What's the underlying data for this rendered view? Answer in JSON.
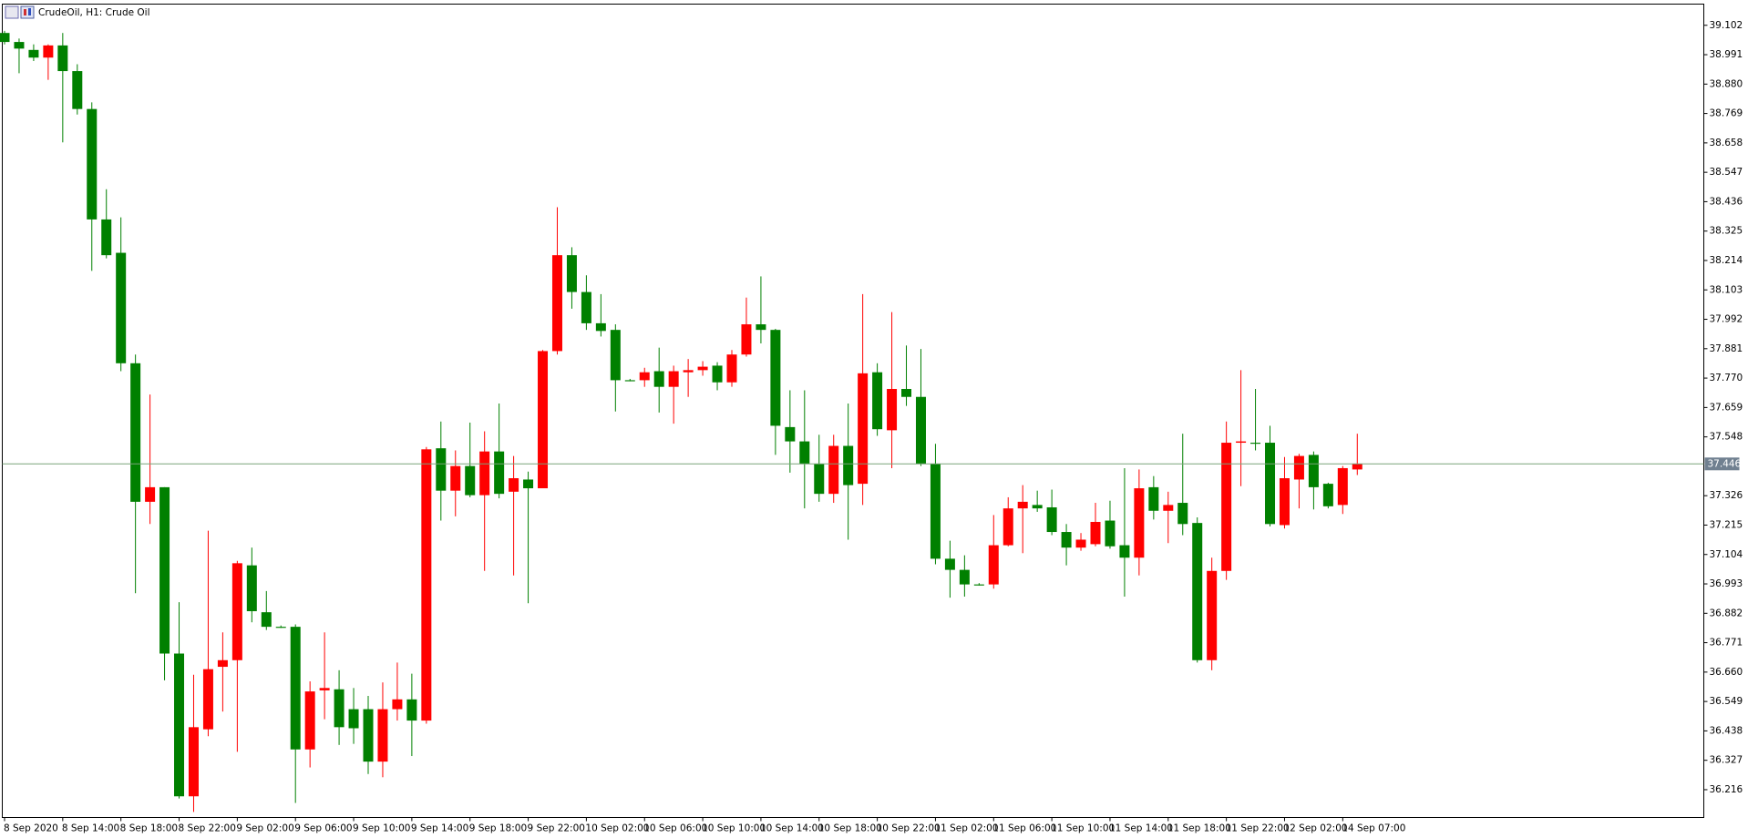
{
  "chart_data": {
    "type": "candlestick",
    "title": "CrudeOil, H1:  Crude Oil",
    "up_color": "#ff0000",
    "down_color": "#008000",
    "current_price": 37.446,
    "current_price_color": "#7aa37a",
    "categories": [
      "8 Sep 2020",
      null,
      null,
      null,
      "8 Sep 14:00",
      null,
      null,
      null,
      "8 Sep 18:00",
      null,
      null,
      null,
      "8 Sep 22:00",
      null,
      null,
      null,
      "9 Sep 02:00",
      null,
      null,
      null,
      "9 Sep 06:00",
      null,
      null,
      null,
      "9 Sep 10:00",
      null,
      null,
      null,
      "9 Sep 14:00",
      null,
      null,
      null,
      "9 Sep 18:00",
      null,
      null,
      null,
      "9 Sep 22:00",
      null,
      null,
      null,
      "10 Sep 02:00",
      null,
      null,
      null,
      "10 Sep 06:00",
      null,
      null,
      null,
      "10 Sep 10:00",
      null,
      null,
      null,
      "10 Sep 14:00",
      null,
      null,
      null,
      "10 Sep 18:00",
      null,
      null,
      null,
      "10 Sep 22:00",
      null,
      null,
      null,
      "11 Sep 02:00",
      null,
      null,
      null,
      "11 Sep 06:00",
      null,
      null,
      null,
      "11 Sep 10:00",
      null,
      null,
      null,
      "11 Sep 14:00",
      null,
      null,
      null,
      "11 Sep 18:00",
      null,
      null,
      null,
      "11 Sep 22:00",
      null,
      null,
      null,
      "12 Sep 02:00",
      null,
      null,
      null,
      "14 Sep 07:00",
      null
    ],
    "open": [
      39.073,
      39.039,
      39.009,
      38.98,
      39.026,
      38.929,
      38.786,
      38.369,
      38.243,
      37.826,
      37.303,
      37.358,
      36.73,
      36.191,
      36.444,
      36.68,
      36.705,
      37.063,
      36.886,
      36.831,
      36.831,
      36.368,
      36.591,
      36.595,
      36.52,
      36.52,
      36.322,
      36.52,
      36.557,
      36.477,
      37.505,
      37.345,
      37.438,
      37.328,
      37.493,
      37.341,
      37.387,
      37.354,
      37.872,
      38.234,
      38.095,
      37.977,
      37.952,
      37.762,
      37.762,
      37.796,
      37.737,
      37.792,
      37.8,
      37.817,
      37.754,
      37.859,
      37.973,
      37.952,
      37.585,
      37.531,
      37.446,
      37.333,
      37.514,
      37.371,
      37.792,
      37.573,
      37.729,
      37.699,
      37.446,
      37.088,
      37.046,
      36.991,
      36.991,
      37.139,
      37.278,
      37.291,
      37.282,
      37.189,
      37.13,
      37.143,
      37.232,
      37.139,
      37.092,
      37.358,
      37.269,
      37.299,
      37.223,
      36.705,
      37.042,
      37.526,
      37.526,
      37.526,
      37.215,
      37.387,
      37.48,
      37.371,
      37.291,
      37.425
    ],
    "high": [
      39.081,
      39.052,
      39.03,
      39.03,
      39.073,
      38.955,
      38.811,
      38.483,
      38.377,
      37.859,
      37.708,
      37.358,
      36.924,
      36.65,
      37.194,
      36.81,
      37.08,
      37.13,
      36.966,
      36.836,
      36.84,
      36.625,
      36.81,
      36.667,
      36.6,
      36.57,
      36.621,
      36.696,
      36.654,
      37.51,
      37.606,
      37.497,
      37.602,
      37.569,
      37.674,
      37.476,
      37.417,
      37.876,
      38.415,
      38.264,
      38.158,
      38.087,
      37.973,
      37.767,
      37.809,
      37.885,
      37.817,
      37.842,
      37.834,
      37.83,
      37.876,
      38.074,
      38.154,
      37.956,
      37.724,
      37.724,
      37.556,
      37.556,
      37.674,
      38.087,
      37.826,
      38.019,
      37.893,
      37.88,
      37.522,
      37.156,
      37.101,
      36.996,
      37.253,
      37.32,
      37.366,
      37.345,
      37.349,
      37.219,
      37.185,
      37.299,
      37.307,
      37.43,
      37.425,
      37.4,
      37.341,
      37.56,
      37.244,
      37.092,
      37.606,
      37.8,
      37.729,
      37.59,
      37.472,
      37.484,
      37.493,
      37.375,
      37.438,
      37.56
    ],
    "low": [
      39.03,
      38.921,
      38.967,
      38.896,
      38.66,
      38.765,
      38.175,
      38.222,
      37.796,
      36.958,
      37.219,
      36.629,
      36.183,
      36.132,
      36.418,
      36.511,
      36.359,
      36.848,
      36.819,
      36.827,
      36.166,
      36.3,
      36.482,
      36.385,
      36.389,
      36.275,
      36.263,
      36.477,
      36.343,
      36.465,
      37.232,
      37.248,
      37.32,
      37.042,
      37.316,
      37.025,
      36.92,
      37.354,
      37.859,
      38.032,
      37.952,
      37.927,
      37.644,
      37.758,
      37.737,
      37.64,
      37.598,
      37.699,
      37.779,
      37.724,
      37.737,
      37.851,
      37.901,
      37.48,
      37.413,
      37.278,
      37.303,
      37.299,
      37.16,
      37.291,
      37.552,
      37.43,
      37.665,
      37.438,
      37.067,
      36.941,
      36.945,
      36.987,
      36.975,
      37.135,
      37.109,
      37.265,
      37.177,
      37.063,
      37.118,
      37.135,
      37.126,
      36.945,
      37.025,
      37.236,
      37.147,
      37.177,
      36.696,
      36.667,
      37.008,
      37.362,
      37.497,
      37.21,
      37.202,
      37.278,
      37.274,
      37.278,
      37.257,
      37.404
    ],
    "close": [
      39.039,
      39.014,
      38.98,
      39.026,
      38.929,
      38.786,
      38.369,
      38.234,
      37.826,
      37.303,
      37.358,
      36.73,
      36.191,
      36.452,
      36.671,
      36.705,
      37.071,
      36.89,
      36.831,
      36.827,
      36.368,
      36.587,
      36.6,
      36.452,
      36.448,
      36.322,
      36.52,
      36.557,
      36.477,
      37.501,
      37.345,
      37.438,
      37.328,
      37.493,
      37.333,
      37.392,
      37.354,
      37.872,
      38.234,
      38.095,
      37.977,
      37.948,
      37.762,
      37.758,
      37.792,
      37.737,
      37.796,
      37.8,
      37.813,
      37.754,
      37.859,
      37.973,
      37.952,
      37.59,
      37.531,
      37.446,
      37.333,
      37.514,
      37.366,
      37.788,
      37.577,
      37.729,
      37.699,
      37.446,
      37.088,
      37.046,
      36.991,
      36.987,
      37.139,
      37.278,
      37.303,
      37.278,
      37.189,
      37.13,
      37.16,
      37.227,
      37.135,
      37.092,
      37.354,
      37.269,
      37.291,
      37.219,
      36.705,
      37.042,
      37.526,
      37.531,
      37.522,
      37.219,
      37.392,
      37.476,
      37.358,
      37.286,
      37.43,
      37.446
    ],
    "ylim": [
      36.111,
      39.182
    ],
    "yticks": [
      39.102,
      38.991,
      {
        "value": 38.88,
        "label": "38.880"
      },
      38.769,
      38.658,
      38.547,
      38.436,
      38.325,
      38.214,
      38.103,
      37.992,
      37.881,
      {
        "value": 37.77,
        "label": "37.770"
      },
      37.659,
      37.548,
      37.326,
      37.215,
      37.104,
      36.993,
      36.882,
      36.771,
      {
        "value": 36.66,
        "label": "36.660"
      },
      36.549,
      36.438,
      36.327,
      36.216
    ]
  }
}
